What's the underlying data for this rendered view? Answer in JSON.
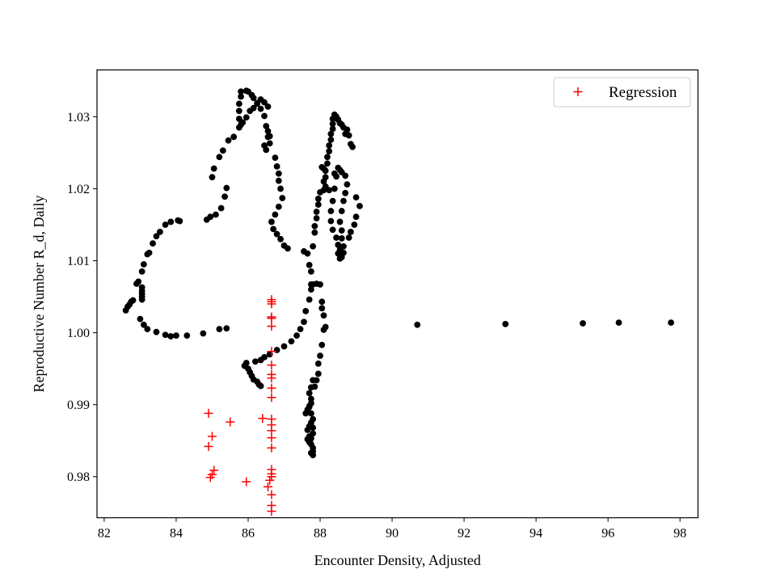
{
  "chart_data": {
    "type": "scatter",
    "title": "",
    "xlabel": "Encounter Density, Adjusted",
    "ylabel": "Reproductive Number R_d, Daily",
    "xlim": [
      81.8,
      98.5
    ],
    "ylim": [
      0.9743,
      1.0365
    ],
    "xticks": [
      82,
      84,
      86,
      88,
      90,
      92,
      94,
      96,
      98
    ],
    "yticks": [
      0.98,
      0.99,
      1.0,
      1.01,
      1.02,
      1.03
    ],
    "xtick_labels": [
      "82",
      "84",
      "86",
      "88",
      "90",
      "92",
      "94",
      "96",
      "98"
    ],
    "ytick_labels": [
      "0.98",
      "0.99",
      "1.00",
      "1.01",
      "1.02",
      "1.03"
    ],
    "grid": false,
    "legend_position": "top-right",
    "colors": {
      "data": "#000000",
      "regression": "#ff0000"
    },
    "series": [
      {
        "marker": "circle",
        "color": "#000000",
        "points": [
          [
            82.6,
            1.0031
          ],
          [
            82.65,
            1.0036
          ],
          [
            82.7,
            1.0039
          ],
          [
            82.75,
            1.0043
          ],
          [
            82.8,
            1.0045
          ],
          [
            82.9,
            1.0068
          ],
          [
            82.95,
            1.0071
          ],
          [
            83.05,
            1.0085
          ],
          [
            83.1,
            1.0095
          ],
          [
            83.2,
            1.0109
          ],
          [
            83.25,
            1.0111
          ],
          [
            83.35,
            1.0124
          ],
          [
            83.45,
            1.0134
          ],
          [
            83.55,
            1.014
          ],
          [
            83.7,
            1.015
          ],
          [
            83.85,
            1.0154
          ],
          [
            84.05,
            1.0156
          ],
          [
            84.1,
            1.0155
          ],
          [
            83.05,
            1.0063
          ],
          [
            83.05,
            1.0058
          ],
          [
            83.05,
            1.0054
          ],
          [
            83.05,
            1.005
          ],
          [
            83.05,
            1.0046
          ],
          [
            83.0,
            1.0019
          ],
          [
            83.1,
            1.0011
          ],
          [
            83.2,
            1.0005
          ],
          [
            83.45,
            1.0001
          ],
          [
            83.7,
            0.9997
          ],
          [
            83.85,
            0.9995
          ],
          [
            84.0,
            0.9996
          ],
          [
            84.3,
            0.9996
          ],
          [
            84.75,
            0.9999
          ],
          [
            85.2,
            1.0005
          ],
          [
            85.4,
            1.0006
          ],
          [
            84.85,
            1.0157
          ],
          [
            84.95,
            1.0161
          ],
          [
            85.1,
            1.0164
          ],
          [
            85.25,
            1.0173
          ],
          [
            85.35,
            1.0189
          ],
          [
            85.4,
            1.0201
          ],
          [
            85.0,
            1.0216
          ],
          [
            85.05,
            1.0228
          ],
          [
            85.2,
            1.0244
          ],
          [
            85.3,
            1.0253
          ],
          [
            85.45,
            1.0267
          ],
          [
            85.6,
            1.0272
          ],
          [
            85.75,
            1.0285
          ],
          [
            85.85,
            1.0292
          ],
          [
            85.95,
            1.0299
          ],
          [
            86.05,
            1.0308
          ],
          [
            86.15,
            1.0312
          ],
          [
            86.25,
            1.0318
          ],
          [
            86.35,
            1.0324
          ],
          [
            86.45,
            1.032
          ],
          [
            86.55,
            1.0314
          ],
          [
            85.8,
            1.0335
          ],
          [
            85.95,
            1.0336
          ],
          [
            86.0,
            1.0335
          ],
          [
            86.1,
            1.033
          ],
          [
            86.15,
            1.0326
          ],
          [
            86.25,
            1.0319
          ],
          [
            86.35,
            1.0311
          ],
          [
            86.45,
            1.0301
          ],
          [
            86.5,
            1.0287
          ],
          [
            86.55,
            1.028
          ],
          [
            86.6,
            1.0273
          ],
          [
            86.45,
            1.026
          ],
          [
            86.5,
            1.0254
          ],
          [
            85.8,
            1.0328
          ],
          [
            85.75,
            1.0318
          ],
          [
            85.75,
            1.0308
          ],
          [
            85.75,
            1.0297
          ],
          [
            85.8,
            1.0289
          ],
          [
            86.55,
            1.0272
          ],
          [
            86.6,
            1.0263
          ],
          [
            86.75,
            1.0243
          ],
          [
            86.8,
            1.0231
          ],
          [
            86.85,
            1.0221
          ],
          [
            86.85,
            1.0211
          ],
          [
            86.9,
            1.02
          ],
          [
            86.95,
            1.0187
          ],
          [
            86.85,
            1.0175
          ],
          [
            86.75,
            1.0164
          ],
          [
            86.65,
            1.0154
          ],
          [
            86.7,
            1.0144
          ],
          [
            86.8,
            1.0137
          ],
          [
            86.9,
            1.013
          ],
          [
            87.1,
            1.0117
          ],
          [
            87.0,
            1.0121
          ],
          [
            85.9,
            0.9954
          ],
          [
            85.95,
            0.9958
          ],
          [
            86.0,
            0.995
          ],
          [
            86.05,
            0.9945
          ],
          [
            86.1,
            0.994
          ],
          [
            86.15,
            0.9935
          ],
          [
            86.25,
            0.9932
          ],
          [
            86.3,
            0.9928
          ],
          [
            86.35,
            0.9926
          ],
          [
            86.2,
            0.996
          ],
          [
            86.35,
            0.9962
          ],
          [
            86.45,
            0.9966
          ],
          [
            86.6,
            0.997
          ],
          [
            86.8,
            0.9976
          ],
          [
            87.0,
            0.9981
          ],
          [
            87.2,
            0.9988
          ],
          [
            87.35,
            0.9996
          ],
          [
            87.45,
            1.0005
          ],
          [
            87.55,
            1.0015
          ],
          [
            87.6,
            1.003
          ],
          [
            87.7,
            1.0046
          ],
          [
            87.75,
            1.006
          ],
          [
            87.8,
            1.0067
          ],
          [
            87.6,
            0.9888
          ],
          [
            87.65,
            0.9893
          ],
          [
            87.7,
            0.9898
          ],
          [
            87.75,
            0.9902
          ],
          [
            87.75,
            0.9908
          ],
          [
            87.7,
            0.9916
          ],
          [
            87.75,
            0.9924
          ],
          [
            87.8,
            0.9934
          ],
          [
            87.55,
            1.0113
          ],
          [
            87.65,
            1.011
          ],
          [
            87.7,
            1.0094
          ],
          [
            87.75,
            1.0085
          ],
          [
            87.8,
            1.012
          ],
          [
            87.85,
            1.0139
          ],
          [
            87.85,
            1.0148
          ],
          [
            87.9,
            1.0159
          ],
          [
            87.9,
            1.0168
          ],
          [
            87.95,
            1.0178
          ],
          [
            87.95,
            1.0186
          ],
          [
            88.0,
            1.0195
          ],
          [
            87.75,
            1.0067
          ],
          [
            87.9,
            1.0068
          ],
          [
            88.0,
            1.0067
          ],
          [
            88.05,
            1.0043
          ],
          [
            88.05,
            1.0034
          ],
          [
            88.1,
            1.0024
          ],
          [
            88.15,
            1.0008
          ],
          [
            88.1,
            1.0004
          ],
          [
            88.05,
            0.9983
          ],
          [
            88.0,
            0.9968
          ],
          [
            87.95,
            0.9957
          ],
          [
            87.95,
            0.9943
          ],
          [
            87.9,
            0.9934
          ],
          [
            87.85,
            0.9925
          ],
          [
            87.7,
            0.9897
          ],
          [
            87.75,
            0.9888
          ],
          [
            87.8,
            0.988
          ],
          [
            87.75,
            0.9875
          ],
          [
            87.8,
            0.9868
          ],
          [
            87.8,
            0.986
          ],
          [
            87.75,
            0.9853
          ],
          [
            87.75,
            0.9845
          ],
          [
            87.8,
            0.984
          ],
          [
            87.8,
            0.9835
          ],
          [
            87.75,
            0.9833
          ],
          [
            87.8,
            0.983
          ],
          [
            87.7,
            0.9848
          ],
          [
            87.65,
            0.9852
          ],
          [
            87.7,
            0.9856
          ],
          [
            87.65,
            0.9865
          ],
          [
            87.7,
            0.987
          ],
          [
            88.05,
            1.023
          ],
          [
            88.1,
            1.0228
          ],
          [
            88.15,
            1.0225
          ],
          [
            88.15,
            1.0216
          ],
          [
            88.1,
            1.021
          ],
          [
            88.15,
            1.0203
          ],
          [
            88.2,
            1.0235
          ],
          [
            88.2,
            1.0244
          ],
          [
            88.25,
            1.0252
          ],
          [
            88.25,
            1.026
          ],
          [
            88.3,
            1.0268
          ],
          [
            88.3,
            1.0276
          ],
          [
            88.35,
            1.0283
          ],
          [
            88.35,
            1.029
          ],
          [
            88.35,
            1.0297
          ],
          [
            88.4,
            1.0303
          ],
          [
            88.45,
            1.03
          ],
          [
            88.5,
            1.0296
          ],
          [
            88.55,
            1.0291
          ],
          [
            88.6,
            1.0289
          ],
          [
            88.65,
            1.0285
          ],
          [
            88.75,
            1.0282
          ],
          [
            88.8,
            1.0274
          ],
          [
            88.7,
            1.0276
          ],
          [
            88.85,
            1.0262
          ],
          [
            88.9,
            1.0258
          ],
          [
            88.4,
            1.0221
          ],
          [
            88.45,
            1.0217
          ],
          [
            88.5,
            1.0229
          ],
          [
            88.55,
            1.0226
          ],
          [
            88.6,
            1.0223
          ],
          [
            88.7,
            1.0218
          ],
          [
            88.75,
            1.0206
          ],
          [
            88.7,
            1.0194
          ],
          [
            88.65,
            1.0183
          ],
          [
            88.6,
            1.0169
          ],
          [
            88.55,
            1.0154
          ],
          [
            88.6,
            1.0142
          ],
          [
            88.6,
            1.0131
          ],
          [
            88.65,
            1.012
          ],
          [
            88.65,
            1.0111
          ],
          [
            88.6,
            1.0105
          ],
          [
            88.55,
            1.0103
          ],
          [
            88.5,
            1.011
          ],
          [
            88.1,
            1.0198
          ],
          [
            88.25,
            1.0198
          ],
          [
            88.4,
            1.02
          ],
          [
            88.35,
            1.0183
          ],
          [
            88.3,
            1.0169
          ],
          [
            88.3,
            1.0155
          ],
          [
            88.35,
            1.0143
          ],
          [
            88.45,
            1.0132
          ],
          [
            88.5,
            1.0122
          ],
          [
            88.55,
            1.0115
          ],
          [
            88.8,
            1.0132
          ],
          [
            88.85,
            1.014
          ],
          [
            88.95,
            1.015
          ],
          [
            89.0,
            1.0161
          ],
          [
            89.1,
            1.0176
          ],
          [
            89.0,
            1.0188
          ],
          [
            90.7,
            1.0011
          ],
          [
            93.15,
            1.0012
          ],
          [
            95.3,
            1.0013
          ],
          [
            96.3,
            1.0014
          ],
          [
            97.75,
            1.0014
          ]
        ]
      },
      {
        "name": "Regression",
        "marker": "plus",
        "color": "#ff0000",
        "points": [
          [
            84.9,
            0.9888
          ],
          [
            85.0,
            0.9856
          ],
          [
            84.9,
            0.9842
          ],
          [
            85.05,
            0.9809
          ],
          [
            85.0,
            0.9803
          ],
          [
            84.95,
            0.9799
          ],
          [
            85.5,
            0.9876
          ],
          [
            85.95,
            0.9793
          ],
          [
            86.4,
            0.9881
          ],
          [
            86.55,
            0.9786
          ],
          [
            86.6,
            0.9795
          ],
          [
            86.65,
            1.0046
          ],
          [
            86.65,
            1.0043
          ],
          [
            86.65,
            1.004
          ],
          [
            86.65,
            1.0022
          ],
          [
            86.65,
            1.002
          ],
          [
            86.65,
            1.0009
          ],
          [
            86.65,
            0.9974
          ],
          [
            86.65,
            0.9955
          ],
          [
            86.65,
            0.9942
          ],
          [
            86.65,
            0.9937
          ],
          [
            86.65,
            0.9923
          ],
          [
            86.65,
            0.991
          ],
          [
            86.65,
            0.988
          ],
          [
            86.65,
            0.9872
          ],
          [
            86.65,
            0.9864
          ],
          [
            86.65,
            0.9854
          ],
          [
            86.65,
            0.984
          ],
          [
            86.65,
            0.981
          ],
          [
            86.65,
            0.9804
          ],
          [
            86.65,
            0.98
          ],
          [
            86.65,
            0.9775
          ],
          [
            86.65,
            0.976
          ],
          [
            86.65,
            0.9752
          ]
        ]
      }
    ]
  }
}
